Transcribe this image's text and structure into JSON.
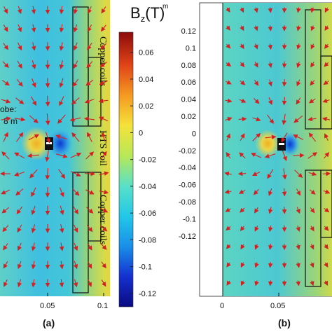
{
  "panel_a": {
    "tag": "(a)",
    "probe_label_line1": "obe:",
    "probe_label_line2": "8 m",
    "coil_labels": [
      "Copper coils",
      "HTS coil",
      "Copper coils"
    ],
    "x_ticks": [
      "0.05",
      "0.1"
    ]
  },
  "panel_b": {
    "tag": "(b)",
    "y_ticks": [
      "0.12",
      "0.1",
      "0.08",
      "0.06",
      "0.04",
      "0.02",
      "0",
      "-0.02",
      "-0.04",
      "-0.06",
      "-0.08",
      "-0.1",
      "-0.12"
    ],
    "x_ticks": [
      "0",
      "0.05"
    ]
  },
  "colorbar": {
    "title_main": "B",
    "title_sub": "z",
    "title_unit": "(T)",
    "corner_unit": "m",
    "tick_labels": [
      "0.06",
      "0.04",
      "0.02",
      "0",
      "-0.02",
      "-0.04",
      "-0.06",
      "-0.08",
      "-0.1",
      "-0.12"
    ],
    "gradient_colors": [
      "#0a0a80",
      "#1530d0",
      "#1a8fe8",
      "#22c8e8",
      "#59e0c8",
      "#b8e858",
      "#f5e23a",
      "#f59a22",
      "#e04418",
      "#8c0b0b"
    ],
    "range": [
      -0.13,
      0.075
    ]
  },
  "colors": {
    "field_base": "#4ecbd6",
    "field_right": "#b9d85a",
    "arrow": "#d42020",
    "coil_outline": "#1a1a1a"
  }
}
